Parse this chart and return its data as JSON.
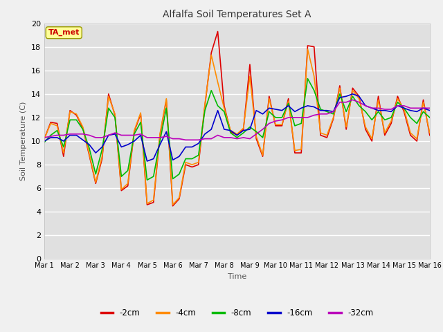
{
  "title": "Alfalfa Soil Temperatures Set A",
  "xlabel": "Time",
  "ylabel": "Soil Temperature (C)",
  "ylim": [
    0,
    20
  ],
  "yticks": [
    0,
    2,
    4,
    6,
    8,
    10,
    12,
    14,
    16,
    18,
    20
  ],
  "fig_bg_color": "#f0f0f0",
  "plot_bg_color": "#e0e0e0",
  "annotation_text": "TA_met",
  "annotation_color": "#cc0000",
  "annotation_bg": "#ffff99",
  "annotation_edge": "#999900",
  "colors": {
    "-2cm": "#dd0000",
    "-4cm": "#ff8c00",
    "-8cm": "#00bb00",
    "-16cm": "#0000cc",
    "-32cm": "#bb00bb"
  },
  "xtick_labels": [
    "Mar 1",
    "Mar 2",
    "Mar 3",
    "Mar 4",
    "Mar 5",
    "Mar 6",
    "Mar 7",
    "Mar 8",
    "Mar 9",
    "Mar 10",
    "Mar 11",
    "Mar 12",
    "Mar 13",
    "Mar 14",
    "Mar 15",
    "Mar 16"
  ],
  "series": {
    "-2cm": [
      10.2,
      11.6,
      11.5,
      8.7,
      12.6,
      12.2,
      11.1,
      8.8,
      6.4,
      8.5,
      14.0,
      12.2,
      5.8,
      6.2,
      10.8,
      12.3,
      4.6,
      4.8,
      10.5,
      13.5,
      4.5,
      5.1,
      8.0,
      7.8,
      8.0,
      13.0,
      17.5,
      19.3,
      13.0,
      10.8,
      10.5,
      11.0,
      16.5,
      10.2,
      8.7,
      13.8,
      11.3,
      11.3,
      13.6,
      9.0,
      9.0,
      18.1,
      18.0,
      10.5,
      10.3,
      11.9,
      14.7,
      11.0,
      14.5,
      13.8,
      11.0,
      10.0,
      13.8,
      10.5,
      11.5,
      13.8,
      12.5,
      10.5,
      10.0,
      13.5,
      10.5
    ],
    "-4cm": [
      10.2,
      11.5,
      11.3,
      9.0,
      12.5,
      12.3,
      11.2,
      8.9,
      6.5,
      8.7,
      13.8,
      12.3,
      5.9,
      6.4,
      10.9,
      12.4,
      4.7,
      5.0,
      10.6,
      13.6,
      4.6,
      5.2,
      8.2,
      8.0,
      8.2,
      13.1,
      17.3,
      15.0,
      12.8,
      10.9,
      10.6,
      11.1,
      15.5,
      10.4,
      8.8,
      13.6,
      11.4,
      11.4,
      13.4,
      9.2,
      9.3,
      17.8,
      15.5,
      10.7,
      10.5,
      12.0,
      14.5,
      11.2,
      14.3,
      13.6,
      11.2,
      10.2,
      13.5,
      10.7,
      11.7,
      13.6,
      12.7,
      10.7,
      10.2,
      13.3,
      10.7
    ],
    "-8cm": [
      9.9,
      10.5,
      10.9,
      9.5,
      11.8,
      11.8,
      11.0,
      9.4,
      7.2,
      9.3,
      12.8,
      12.0,
      7.0,
      7.5,
      10.6,
      11.6,
      6.7,
      7.0,
      10.0,
      12.8,
      6.8,
      7.2,
      8.5,
      8.5,
      8.8,
      12.6,
      14.3,
      13.0,
      12.5,
      10.7,
      10.3,
      10.7,
      11.2,
      10.8,
      10.3,
      12.5,
      12.0,
      12.0,
      13.2,
      11.3,
      11.5,
      15.3,
      14.3,
      12.7,
      12.5,
      12.3,
      14.0,
      12.5,
      13.8,
      13.0,
      12.5,
      11.8,
      12.5,
      11.8,
      12.0,
      13.3,
      12.8,
      12.0,
      11.5,
      12.5,
      12.0
    ],
    "-16cm": [
      10.0,
      10.3,
      10.3,
      10.0,
      10.5,
      10.5,
      10.1,
      9.7,
      9.0,
      9.5,
      10.5,
      10.6,
      9.5,
      9.7,
      10.0,
      10.5,
      8.3,
      8.5,
      9.7,
      10.8,
      8.4,
      8.7,
      9.5,
      9.5,
      9.8,
      10.6,
      11.0,
      12.6,
      11.0,
      10.9,
      10.5,
      10.9,
      11.0,
      12.6,
      12.3,
      12.8,
      12.7,
      12.6,
      13.0,
      12.5,
      12.8,
      13.0,
      12.9,
      12.6,
      12.6,
      12.5,
      13.7,
      13.8,
      14.0,
      13.8,
      13.0,
      12.8,
      12.6,
      12.6,
      12.5,
      13.0,
      12.8,
      12.6,
      12.5,
      12.8,
      12.6
    ],
    "-32cm": [
      10.3,
      10.4,
      10.5,
      10.5,
      10.6,
      10.6,
      10.6,
      10.5,
      10.3,
      10.3,
      10.5,
      10.7,
      10.5,
      10.5,
      10.5,
      10.6,
      10.3,
      10.3,
      10.3,
      10.4,
      10.2,
      10.2,
      10.1,
      10.1,
      10.1,
      10.2,
      10.2,
      10.5,
      10.3,
      10.3,
      10.2,
      10.3,
      10.2,
      10.6,
      11.0,
      11.5,
      11.7,
      11.8,
      12.0,
      12.0,
      12.0,
      12.0,
      12.2,
      12.3,
      12.3,
      12.5,
      13.3,
      13.3,
      13.5,
      13.3,
      13.0,
      12.8,
      12.8,
      12.7,
      12.7,
      13.0,
      13.0,
      12.8,
      12.8,
      12.8,
      12.8
    ]
  }
}
